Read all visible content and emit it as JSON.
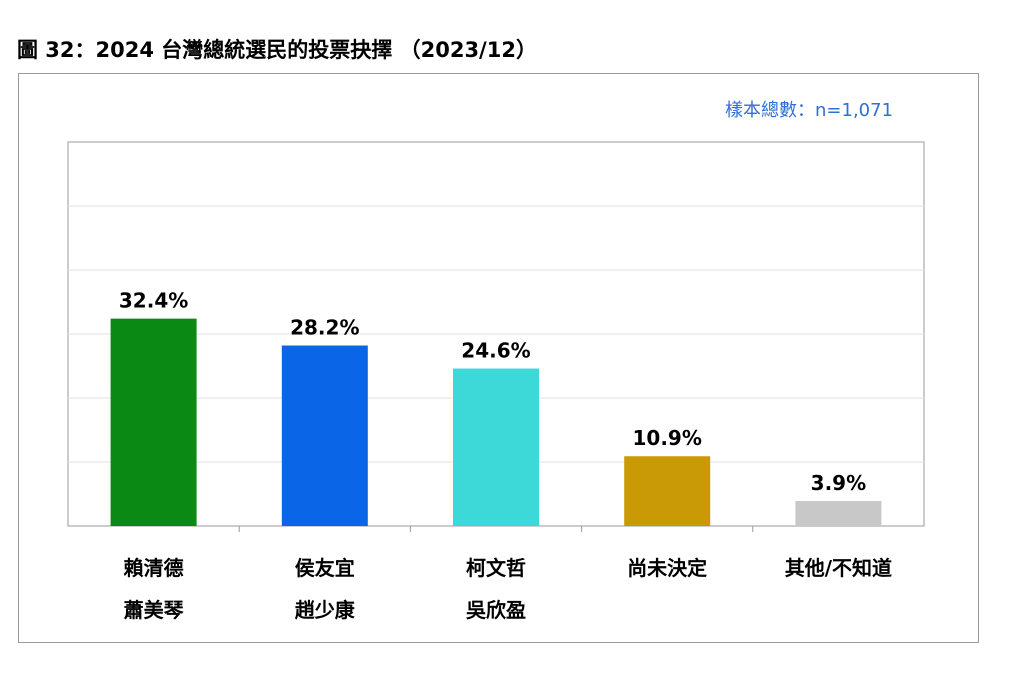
{
  "figure": {
    "title": "圖 32：2024 台灣總統選民的投票抉擇 （2023/12）",
    "sample_note": "樣本總數：n=1,071"
  },
  "chart_data": {
    "type": "bar",
    "title": "圖 32：2024 台灣總統選民的投票抉擇 （2023/12）",
    "xlabel": "",
    "ylabel": "",
    "ylim": [
      0,
      60
    ],
    "grid": true,
    "legend": "none",
    "categories": [
      [
        "賴清德",
        "蕭美琴"
      ],
      [
        "侯友宜",
        "趙少康"
      ],
      [
        "柯文哲",
        "吳欣盈"
      ],
      [
        "尚未決定"
      ],
      [
        "其他/不知道"
      ]
    ],
    "values": [
      32.4,
      28.2,
      24.6,
      10.9,
      3.9
    ],
    "value_labels": [
      "32.4%",
      "28.2%",
      "24.6%",
      "10.9%",
      "3.9%"
    ],
    "colors": [
      "#0a8a14",
      "#0a66e6",
      "#3dd9d9",
      "#c99a05",
      "#c8c8c8"
    ]
  }
}
